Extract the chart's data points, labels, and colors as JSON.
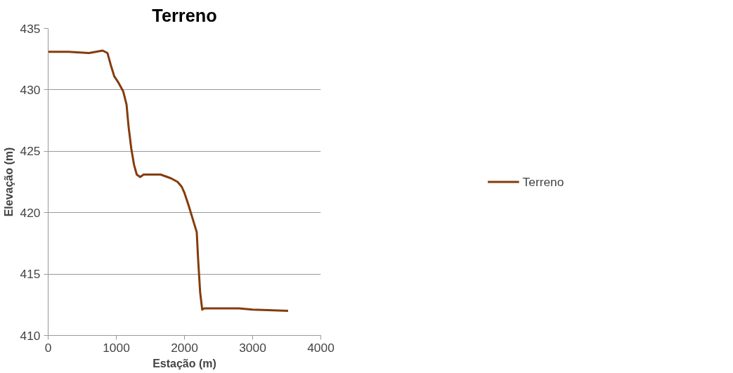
{
  "chart_data": {
    "type": "line",
    "title": "Terreno",
    "xlabel": "Estação (m)",
    "ylabel": "Elevação (m)",
    "x": [
      0,
      300,
      600,
      700,
      800,
      870,
      920,
      970,
      1030,
      1100,
      1150,
      1180,
      1220,
      1260,
      1300,
      1350,
      1400,
      1450,
      1650,
      1800,
      1900,
      1960,
      2000,
      2060,
      2120,
      2180,
      2200,
      2230,
      2260,
      2290,
      2800,
      3000,
      3520
    ],
    "series": [
      {
        "name": "Terreno",
        "color": "#843c0c",
        "values": [
          433.1,
          433.1,
          433.0,
          433.1,
          433.2,
          433.0,
          432.0,
          431.1,
          430.6,
          429.9,
          428.8,
          427.0,
          425.2,
          423.9,
          423.1,
          422.9,
          423.1,
          423.1,
          423.1,
          422.8,
          422.5,
          422.1,
          421.6,
          420.6,
          419.5,
          418.4,
          416.2,
          413.5,
          412.1,
          412.2,
          412.2,
          412.1,
          412.0
        ]
      }
    ],
    "xlim": [
      0,
      4000
    ],
    "ylim": [
      410,
      435
    ],
    "xticks": [
      0,
      1000,
      2000,
      3000,
      4000
    ],
    "yticks": [
      410,
      415,
      420,
      425,
      430,
      435
    ],
    "grid": "y",
    "legend": "right",
    "marker": "none",
    "line_style": "solid"
  }
}
